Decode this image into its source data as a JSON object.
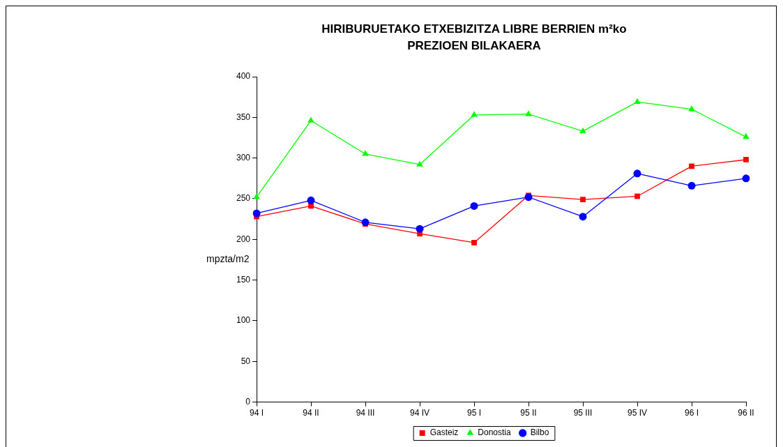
{
  "chart_data": {
    "type": "line",
    "title": "HIRIBURUETAKO ETXEBIZITZA LIBRE BERRIEN m²ko\nPREZIOEN BILAKAERA",
    "ylabel": "mpzta/m2",
    "categories": [
      "94 I",
      "94 II",
      "94 III",
      "94 IV",
      "95 I",
      "95 II",
      "95 III",
      "95 IV",
      "96 I",
      "96 II"
    ],
    "series": [
      {
        "name": "Gasteiz",
        "color": "#ff0000",
        "marker": "square",
        "values": [
          228,
          241,
          219,
          207,
          196,
          254,
          249,
          253,
          290,
          298
        ]
      },
      {
        "name": "Donostia",
        "color": "#00ff00",
        "marker": "triangle",
        "values": [
          252,
          346,
          305,
          292,
          353,
          354,
          333,
          369,
          360,
          326
        ]
      },
      {
        "name": "Bilbo",
        "color": "#0000ff",
        "marker": "circle",
        "values": [
          232,
          248,
          221,
          213,
          241,
          252,
          228,
          281,
          266,
          275
        ]
      }
    ],
    "ylim": [
      0,
      400
    ],
    "yticks": [
      0,
      50,
      100,
      150,
      200,
      250,
      300,
      350,
      400
    ],
    "legend": "bottom",
    "line_style": "solid"
  }
}
